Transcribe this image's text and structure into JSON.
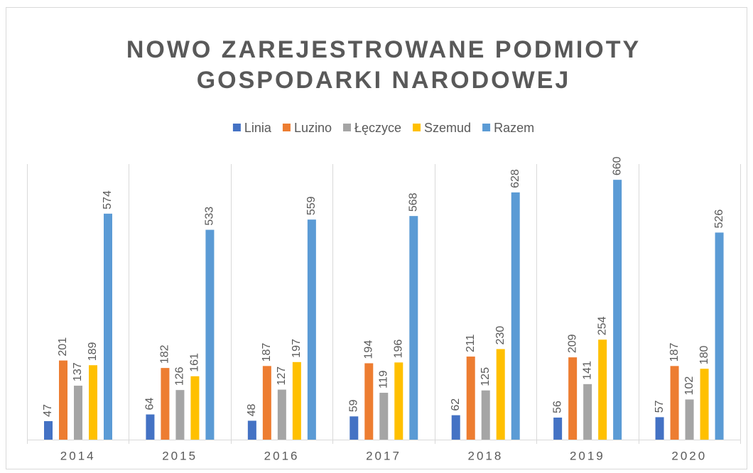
{
  "chart_data": {
    "type": "bar",
    "title": [
      "NOWO ZAREJESTROWANE PODMIOTY",
      "GOSPODARKI NARODOWEJ"
    ],
    "categories": [
      "2014",
      "2015",
      "2016",
      "2017",
      "2018",
      "2019",
      "2020"
    ],
    "series": [
      {
        "name": "Linia",
        "color": "#4472c4",
        "values": [
          47,
          64,
          48,
          59,
          62,
          56,
          57
        ]
      },
      {
        "name": "Luzino",
        "color": "#ed7d31",
        "values": [
          201,
          182,
          187,
          194,
          211,
          209,
          187
        ]
      },
      {
        "name": "Łęczyce",
        "color": "#a5a5a5",
        "values": [
          137,
          126,
          127,
          119,
          125,
          141,
          102
        ]
      },
      {
        "name": "Szemud",
        "color": "#ffc000",
        "values": [
          189,
          161,
          197,
          196,
          230,
          254,
          180
        ]
      },
      {
        "name": "Razem",
        "color": "#5b9bd5",
        "values": [
          574,
          533,
          559,
          568,
          628,
          660,
          526
        ]
      }
    ],
    "ylim": [
      0,
      700
    ],
    "legend": "top"
  }
}
